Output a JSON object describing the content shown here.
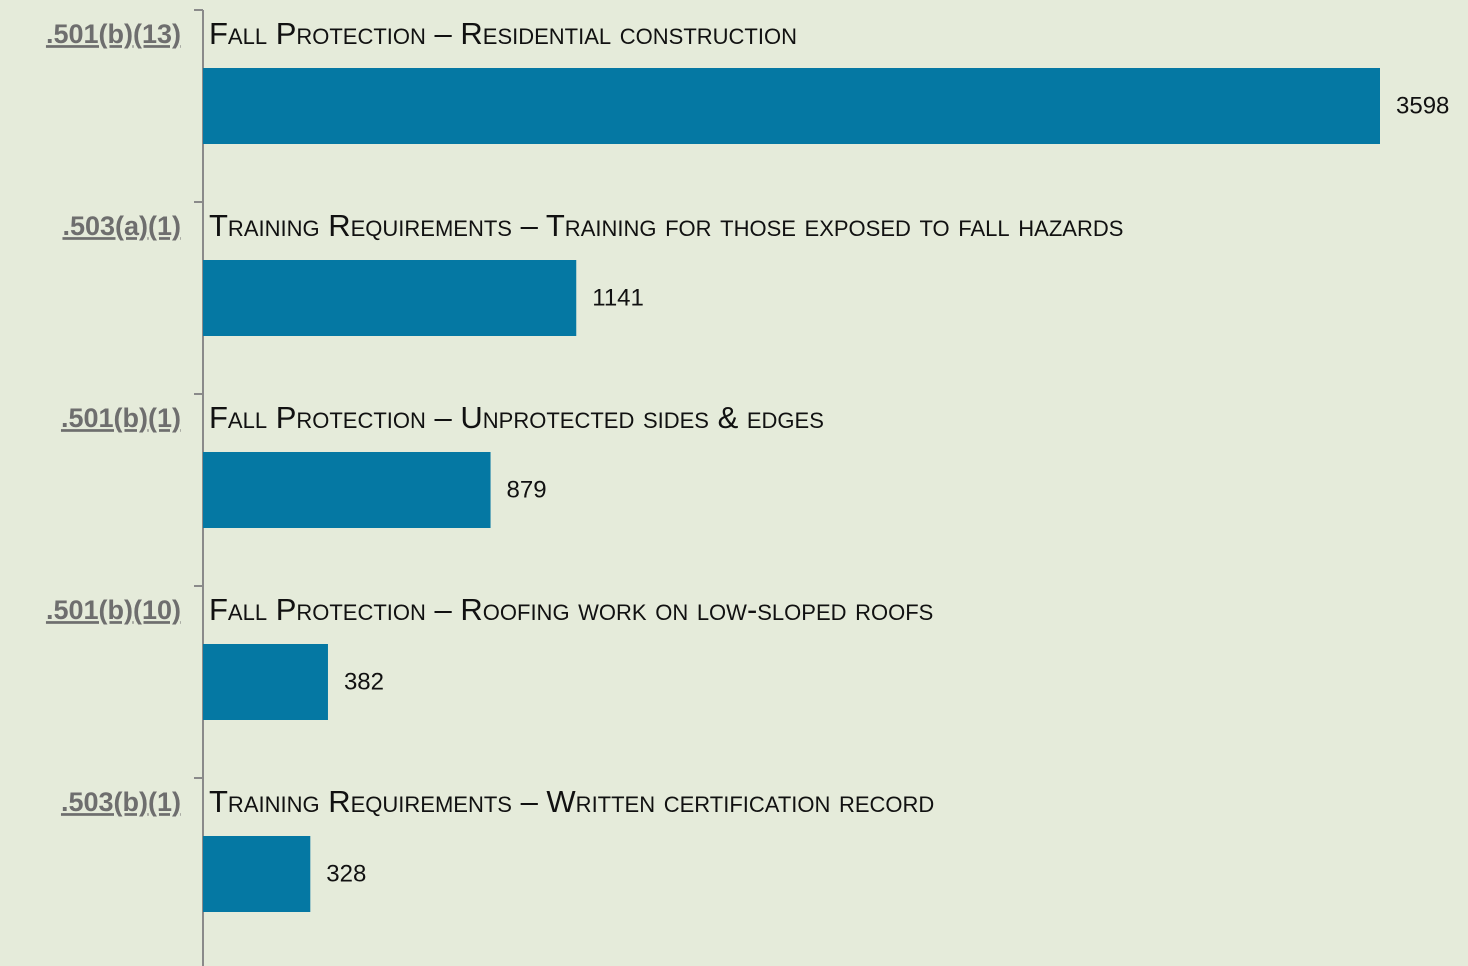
{
  "chart_data": {
    "type": "bar",
    "orientation": "horizontal",
    "categories": [
      ".501(b)(13)",
      ".503(a)(1)",
      ".501(b)(1)",
      ".501(b)(10)",
      ".503(b)(1)"
    ],
    "descriptions": [
      "Fall Protection – Residential construction",
      "Training Requirements – Training for those exposed to fall hazards",
      "Fall Protection – Unprotected sides & edges",
      "Fall Protection – Roofing work on low-sloped roofs",
      "Training Requirements – Written certification record"
    ],
    "values": [
      3598,
      1141,
      879,
      382,
      328
    ],
    "color": "#0578a3"
  }
}
